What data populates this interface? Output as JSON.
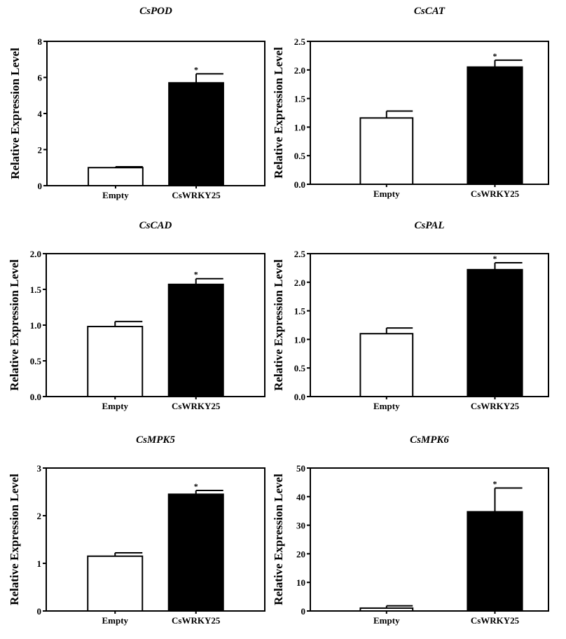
{
  "chart_data": [
    {
      "type": "bar",
      "title": "CsPOD",
      "ylabel": "Relative Expression Level",
      "categories": [
        "Empty",
        "CsWRKY25"
      ],
      "values": [
        1.0,
        5.7
      ],
      "errors": [
        0.05,
        0.5
      ],
      "significance": [
        "",
        "*"
      ],
      "ylim": [
        0,
        8
      ],
      "yticks": [
        "0",
        "2",
        "4",
        "6",
        "8"
      ],
      "colors": [
        "#ffffff",
        "#000000"
      ]
    },
    {
      "type": "bar",
      "title": "CsCAT",
      "ylabel": "Relative Expression Level",
      "categories": [
        "Empty",
        "CsWRKY25"
      ],
      "values": [
        1.16,
        2.05
      ],
      "errors": [
        0.12,
        0.12
      ],
      "significance": [
        "",
        "*"
      ],
      "ylim": [
        0,
        2.5
      ],
      "yticks": [
        "0.0",
        "0.5",
        "1.0",
        "1.5",
        "2.0",
        "2.5"
      ],
      "colors": [
        "#ffffff",
        "#000000"
      ]
    },
    {
      "type": "bar",
      "title": "CsCAD",
      "ylabel": "Relative Expression Level",
      "categories": [
        "Empty",
        "CsWRKY25"
      ],
      "values": [
        0.98,
        1.57
      ],
      "errors": [
        0.07,
        0.08
      ],
      "significance": [
        "",
        "*"
      ],
      "ylim": [
        0,
        2.0
      ],
      "yticks": [
        "0.0",
        "0.5",
        "1.0",
        "1.5",
        "2.0"
      ],
      "colors": [
        "#ffffff",
        "#000000"
      ]
    },
    {
      "type": "bar",
      "title": "CsPAL",
      "ylabel": "Relative Expression Level",
      "categories": [
        "Empty",
        "CsWRKY25"
      ],
      "values": [
        1.1,
        2.22
      ],
      "errors": [
        0.1,
        0.12
      ],
      "significance": [
        "",
        "*"
      ],
      "ylim": [
        0,
        2.5
      ],
      "yticks": [
        "0.0",
        "0.5",
        "1.0",
        "1.5",
        "2.0",
        "2.5"
      ],
      "colors": [
        "#ffffff",
        "#000000"
      ]
    },
    {
      "type": "bar",
      "title": "CsMPK5",
      "ylabel": "Relative Expression Level",
      "categories": [
        "Empty",
        "CsWRKY25"
      ],
      "values": [
        1.15,
        2.45
      ],
      "errors": [
        0.07,
        0.08
      ],
      "significance": [
        "",
        "*"
      ],
      "ylim": [
        0,
        3
      ],
      "yticks": [
        "0",
        "1",
        "2",
        "3"
      ],
      "colors": [
        "#ffffff",
        "#000000"
      ]
    },
    {
      "type": "bar",
      "title": "CsMPK6",
      "ylabel": "Relative Expression Level",
      "categories": [
        "Empty",
        "CsWRKY25"
      ],
      "values": [
        1.0,
        34.7
      ],
      "errors": [
        0.8,
        8.3
      ],
      "significance": [
        "",
        "*"
      ],
      "ylim": [
        0,
        50
      ],
      "yticks": [
        "0",
        "10",
        "20",
        "30",
        "40",
        "50"
      ],
      "colors": [
        "#ffffff",
        "#000000"
      ]
    }
  ]
}
